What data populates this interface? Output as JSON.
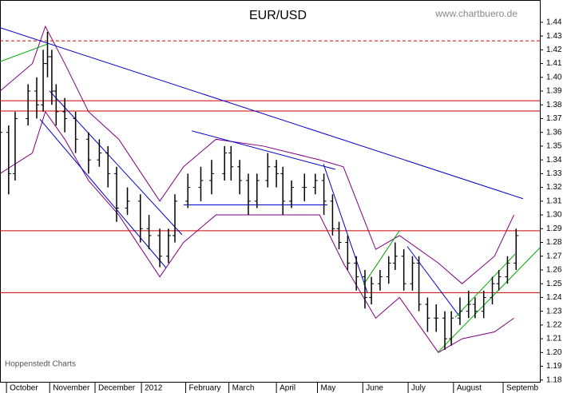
{
  "chart_data": {
    "type": "ohlc",
    "title": "EUR/USD",
    "source": "www.chartbuero.de",
    "footer": "Hoppenstedt Charts",
    "bar_color": "#000000",
    "x": [
      0,
      4,
      7,
      13,
      17,
      20,
      22,
      24,
      26,
      30,
      35,
      41,
      46,
      50,
      54,
      59,
      65,
      69,
      74,
      78,
      81,
      87,
      93,
      98,
      104,
      107,
      111,
      115,
      119,
      124,
      128,
      131,
      135,
      141,
      146,
      150,
      154,
      157,
      161,
      165,
      169,
      172,
      176,
      180,
      183,
      187,
      191,
      194,
      198,
      202,
      206,
      209,
      213,
      217,
      220,
      224,
      228,
      231,
      235,
      239
    ],
    "open": [
      1.355,
      1.36,
      1.33,
      1.37,
      1.39,
      1.38,
      1.41,
      1.415,
      1.39,
      1.375,
      1.37,
      1.355,
      1.34,
      1.345,
      1.33,
      1.305,
      1.31,
      1.29,
      1.285,
      1.27,
      1.285,
      1.31,
      1.32,
      1.325,
      1.33,
      1.345,
      1.335,
      1.325,
      1.31,
      1.325,
      1.335,
      1.33,
      1.31,
      1.32,
      1.32,
      1.325,
      1.31,
      1.29,
      1.28,
      1.265,
      1.255,
      1.24,
      1.25,
      1.255,
      1.265,
      1.27,
      1.25,
      1.265,
      1.235,
      1.225,
      1.225,
      1.21,
      1.225,
      1.23,
      1.235,
      1.23,
      1.24,
      1.25,
      1.255,
      1.265
    ],
    "high": [
      1.37,
      1.365,
      1.375,
      1.395,
      1.4,
      1.42,
      1.433,
      1.42,
      1.395,
      1.385,
      1.375,
      1.36,
      1.355,
      1.35,
      1.335,
      1.32,
      1.315,
      1.3,
      1.29,
      1.29,
      1.315,
      1.33,
      1.335,
      1.34,
      1.35,
      1.35,
      1.34,
      1.33,
      1.33,
      1.345,
      1.34,
      1.335,
      1.325,
      1.33,
      1.33,
      1.33,
      1.315,
      1.295,
      1.285,
      1.27,
      1.26,
      1.255,
      1.26,
      1.27,
      1.28,
      1.275,
      1.27,
      1.27,
      1.24,
      1.235,
      1.23,
      1.23,
      1.24,
      1.245,
      1.24,
      1.245,
      1.255,
      1.26,
      1.27,
      1.29
    ],
    "low": [
      1.345,
      1.315,
      1.325,
      1.365,
      1.37,
      1.375,
      1.4,
      1.38,
      1.365,
      1.36,
      1.345,
      1.33,
      1.335,
      1.32,
      1.295,
      1.3,
      1.28,
      1.275,
      1.262,
      1.265,
      1.28,
      1.305,
      1.31,
      1.315,
      1.325,
      1.325,
      1.315,
      1.3,
      1.305,
      1.32,
      1.32,
      1.3,
      1.305,
      1.31,
      1.315,
      1.3,
      1.285,
      1.275,
      1.26,
      1.245,
      1.232,
      1.235,
      1.245,
      1.25,
      1.26,
      1.245,
      1.245,
      1.23,
      1.215,
      1.215,
      1.202,
      1.205,
      1.22,
      1.225,
      1.225,
      1.225,
      1.235,
      1.245,
      1.25,
      1.26
    ],
    "close": [
      1.36,
      1.33,
      1.37,
      1.39,
      1.38,
      1.41,
      1.415,
      1.39,
      1.375,
      1.37,
      1.355,
      1.34,
      1.345,
      1.33,
      1.305,
      1.31,
      1.29,
      1.285,
      1.27,
      1.285,
      1.31,
      1.32,
      1.325,
      1.33,
      1.345,
      1.335,
      1.325,
      1.31,
      1.325,
      1.335,
      1.33,
      1.31,
      1.32,
      1.32,
      1.325,
      1.31,
      1.29,
      1.28,
      1.265,
      1.255,
      1.24,
      1.25,
      1.255,
      1.265,
      1.27,
      1.25,
      1.265,
      1.235,
      1.225,
      1.225,
      1.21,
      1.225,
      1.23,
      1.235,
      1.23,
      1.24,
      1.25,
      1.255,
      1.265,
      1.285
    ],
    "bands": {
      "color": "#800080",
      "x": [
        0,
        15,
        21,
        30,
        41,
        55,
        74,
        85,
        100,
        122,
        148,
        159,
        174,
        185,
        203,
        214,
        229,
        238
      ],
      "upper": [
        1.39,
        1.41,
        1.437,
        1.41,
        1.375,
        1.355,
        1.31,
        1.335,
        1.355,
        1.35,
        1.34,
        1.335,
        1.275,
        1.285,
        1.265,
        1.25,
        1.27,
        1.3
      ],
      "lower": [
        1.33,
        1.345,
        1.375,
        1.355,
        1.325,
        1.3,
        1.255,
        1.28,
        1.3,
        1.3,
        1.3,
        1.265,
        1.225,
        1.24,
        1.2,
        1.21,
        1.215,
        1.225
      ]
    },
    "levels": [
      {
        "value": 1.4265,
        "color": "#cc0000",
        "dashed": true
      },
      {
        "value": 1.383,
        "color": "#cc0000",
        "dashed": false
      },
      {
        "value": 1.3755,
        "color": "#cc0000",
        "dashed": false
      },
      {
        "value": 1.2885,
        "color": "#cc0000",
        "dashed": false
      },
      {
        "value": 1.2435,
        "color": "#cc0000",
        "dashed": false
      }
    ],
    "trendlines": [
      {
        "x": [
          0,
          242.2
        ],
        "y": [
          1.4361,
          1.3118
        ],
        "color": "#0000cc"
      },
      {
        "x": [
          0,
          22.2
        ],
        "y": [
          1.4114,
          1.4243
        ],
        "color": "#00aa00"
      },
      {
        "x": [
          22.9,
          84.3
        ],
        "y": [
          1.3902,
          1.2856
        ],
        "color": "#0000cc"
      },
      {
        "x": [
          18.5,
          76.9
        ],
        "y": [
          1.3695,
          1.2615
        ],
        "color": "#0000cc"
      },
      {
        "x": [
          88.8,
          155.3
        ],
        "y": [
          1.3611,
          1.3331
        ],
        "color": "#0000cc"
      },
      {
        "x": [
          85,
          151.6
        ],
        "y": [
          1.3073,
          1.3073
        ],
        "color": "#0000cc"
      },
      {
        "x": [
          149.8,
          170.1
        ],
        "y": [
          1.337,
          1.2437
        ],
        "color": "#0000cc"
      },
      {
        "x": [
          188.6,
          212.6
        ],
        "y": [
          1.2771,
          1.2267
        ],
        "color": "#0000cc"
      },
      {
        "x": [
          168.3,
          184.9
        ],
        "y": [
          1.2492,
          1.2883
        ],
        "color": "#00aa00"
      },
      {
        "x": [
          202.7,
          250
        ],
        "y": [
          1.2,
          1.2761
        ],
        "color": "#00aa00"
      },
      {
        "x": [
          210.8,
          238.5
        ],
        "y": [
          1.2256,
          1.2715
        ],
        "color": "#00aa00"
      }
    ],
    "xlim": [
      0,
      250
    ],
    "xticks": [
      {
        "value": 3,
        "label": "October"
      },
      {
        "value": 23,
        "label": "November"
      },
      {
        "value": 44,
        "label": "December"
      },
      {
        "value": 65.5,
        "label": "2012"
      },
      {
        "value": 86,
        "label": "February"
      },
      {
        "value": 106,
        "label": "March"
      },
      {
        "value": 128,
        "label": "April"
      },
      {
        "value": 147,
        "label": "May"
      },
      {
        "value": 168,
        "label": "June"
      },
      {
        "value": 189,
        "label": "July"
      },
      {
        "value": 210,
        "label": "August"
      },
      {
        "value": 233,
        "label": "Septemb"
      }
    ],
    "ylim": [
      1.1787,
      1.4562
    ],
    "yticks": [
      1.18,
      1.19,
      {
        "value": 1.2,
        "label": "1.20"
      },
      1.21,
      1.22,
      1.23,
      1.24,
      1.25,
      1.26,
      1.27,
      1.28,
      1.29,
      {
        "value": 1.3,
        "label": "1.30"
      },
      1.31,
      1.32,
      1.33,
      1.34,
      1.35,
      1.36,
      1.37,
      1.38,
      1.39,
      {
        "value": 1.4,
        "label": "1.40"
      },
      1.41,
      1.42,
      1.43,
      1.44
    ]
  }
}
